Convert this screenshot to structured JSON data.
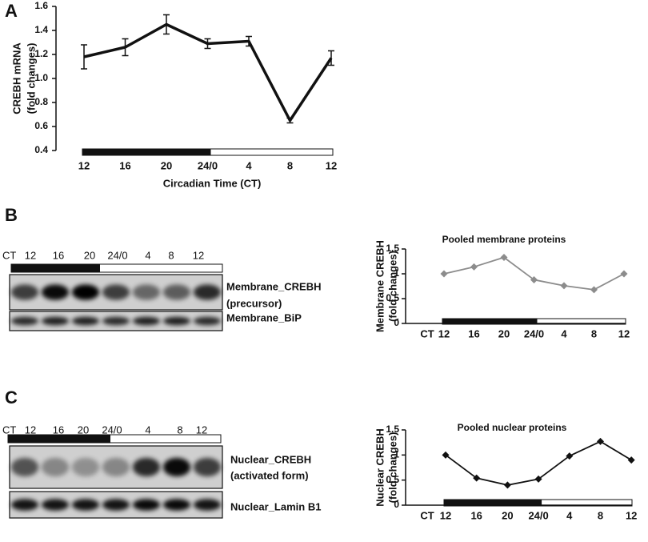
{
  "chart_data": [
    {
      "type": "line",
      "panel": "A",
      "ylabel": [
        "CREBH mRNA",
        "(fold changes)"
      ],
      "xlabel": "Circadian Time (CT)",
      "categories": [
        "12",
        "16",
        "20",
        "24/0",
        "4",
        "8",
        "12"
      ],
      "values": [
        1.18,
        1.26,
        1.45,
        1.29,
        1.31,
        0.65,
        1.17
      ],
      "errors": [
        0.1,
        0.07,
        0.08,
        0.04,
        0.04,
        0.02,
        0.06
      ],
      "color": "#111111",
      "marker": "none",
      "ylim": [
        0.4,
        1.6
      ],
      "yticks": [
        0.4,
        0.6,
        0.8,
        {
          "value": 1,
          "label": "1.0"
        },
        1.2,
        1.4,
        1.6
      ],
      "dark_bar_categories": [
        0,
        3
      ]
    },
    {
      "type": "line",
      "title": "Pooled membrane proteins",
      "ylabel": [
        "Membrane CREBH",
        "(fold changes)"
      ],
      "x_prefix": "CT",
      "categories": [
        "12",
        "16",
        "20",
        "24/0",
        "4",
        "8",
        "12"
      ],
      "values": [
        1.0,
        1.14,
        1.33,
        0.88,
        0.76,
        0.68,
        1.0
      ],
      "color": "#8c8c8c",
      "marker": "diamond",
      "ylim": [
        0,
        1.5
      ],
      "yticks": [
        0,
        0.5,
        1,
        1.5
      ],
      "dark_bar_categories": [
        0,
        3
      ]
    },
    {
      "type": "line",
      "title": "Pooled nuclear proteins",
      "ylabel": [
        "Nuclear CREBH",
        "(fold changes)"
      ],
      "x_prefix": "CT",
      "categories": [
        "12",
        "16",
        "20",
        "24/0",
        "4",
        "8",
        "12"
      ],
      "values": [
        1.0,
        0.54,
        0.4,
        0.52,
        0.98,
        1.27,
        0.9
      ],
      "color": "#111111",
      "marker": "diamond",
      "ylim": [
        0,
        1.5
      ],
      "yticks": [
        0,
        0.5,
        1,
        1.5
      ],
      "dark_bar_categories": [
        0,
        3
      ]
    }
  ],
  "blots": [
    {
      "panel": "B",
      "lanes": [
        "CT",
        "12",
        "16",
        "20",
        "24/0",
        "4",
        "8",
        "12"
      ],
      "rows": [
        [
          "Membrane_CREBH",
          "(precursor)"
        ],
        [
          "Membrane_BiP"
        ]
      ]
    },
    {
      "panel": "C",
      "lanes": [
        "CT",
        "12",
        "16",
        "20",
        "24/0",
        "4",
        "8",
        "12"
      ],
      "rows": [
        [
          "Nuclear_CREBH",
          "(activated form)"
        ],
        [
          "Nuclear_Lamin B1"
        ]
      ]
    }
  ]
}
